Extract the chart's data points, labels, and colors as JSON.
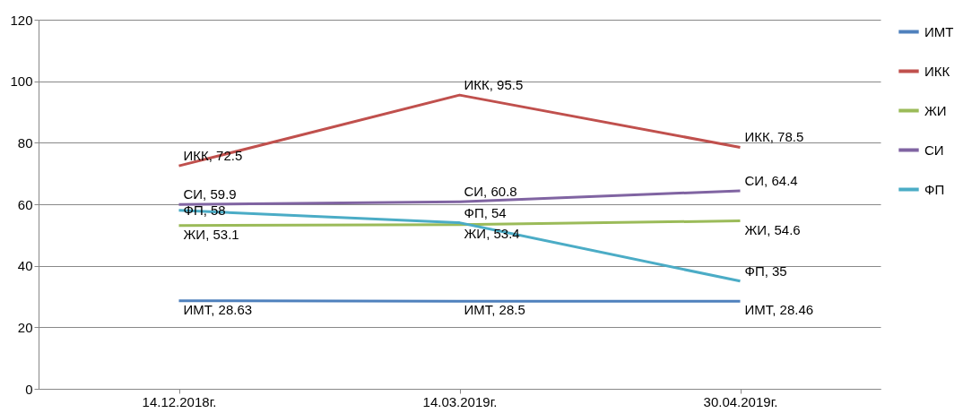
{
  "chart_data": {
    "type": "line",
    "categories": [
      "14.12.2018г.",
      "14.03.2019г.",
      "30.04.2019г."
    ],
    "series": [
      {
        "name": "ИМТ",
        "color": "#4f81bd",
        "values": [
          28.63,
          28.5,
          28.46
        ],
        "value_labels": [
          "ИМТ, 28.63",
          "ИМТ, 28.5",
          "ИМТ, 28.46"
        ]
      },
      {
        "name": "ИКК",
        "color": "#c0504d",
        "values": [
          72.5,
          95.5,
          78.5
        ],
        "value_labels": [
          "ИКК, 72.5",
          "ИКК, 95.5",
          "ИКК, 78.5"
        ]
      },
      {
        "name": "ЖИ",
        "color": "#9bbb59",
        "values": [
          53.1,
          53.4,
          54.6
        ],
        "value_labels": [
          "ЖИ, 53.1",
          "ЖИ, 53.4",
          "ЖИ, 54.6"
        ]
      },
      {
        "name": "СИ",
        "color": "#8064a2",
        "values": [
          59.9,
          60.8,
          64.4
        ],
        "value_labels": [
          "СИ, 59.9",
          "СИ, 60.8",
          "СИ, 64.4"
        ]
      },
      {
        "name": "ФП",
        "color": "#4bacc6",
        "values": [
          58,
          54,
          35
        ],
        "value_labels": [
          "ФП, 58",
          "ФП, 54",
          "ФП, 35"
        ]
      }
    ],
    "ylim": [
      0,
      120
    ],
    "yticks": [
      0,
      20,
      40,
      60,
      80,
      100,
      120
    ],
    "grid": "y",
    "legend": "right",
    "marker": "none"
  }
}
